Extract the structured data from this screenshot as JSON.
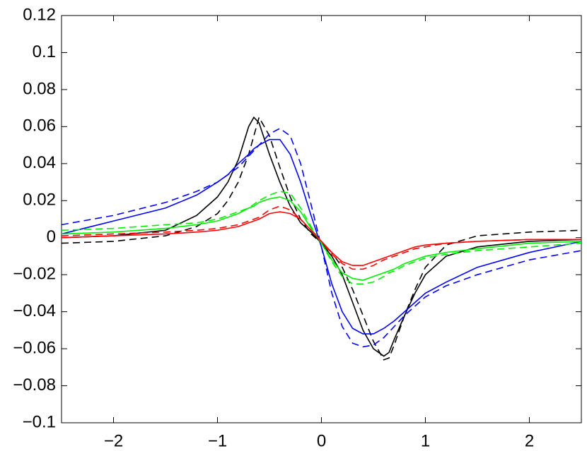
{
  "chart_data": {
    "type": "line",
    "x": [
      -2.5,
      -2,
      -1.5,
      -1.2,
      -1,
      -0.9,
      -0.8,
      -0.7,
      -0.65,
      -0.6,
      -0.5,
      -0.4,
      -0.3,
      -0.2,
      -0.1,
      0,
      0.1,
      0.2,
      0.3,
      0.4,
      0.5,
      0.6,
      0.65,
      0.7,
      0.8,
      0.9,
      1,
      1.2,
      1.5,
      2,
      2.5
    ],
    "series": [
      {
        "color": "#000000",
        "dash": false,
        "values": [
          0,
          0.001,
          0.004,
          0.012,
          0.022,
          0.03,
          0.042,
          0.06,
          0.065,
          0.062,
          0.045,
          0.03,
          0.017,
          0.008,
          0.003,
          -0.003,
          -0.01,
          -0.02,
          -0.035,
          -0.05,
          -0.06,
          -0.064,
          -0.062,
          -0.055,
          -0.042,
          -0.03,
          -0.02,
          -0.01,
          -0.005,
          -0.002,
          -0.001
        ]
      },
      {
        "color": "#000000",
        "dash": true,
        "values": [
          -0.003,
          -0.002,
          0.001,
          0.006,
          0.013,
          0.02,
          0.03,
          0.045,
          0.055,
          0.065,
          0.055,
          0.038,
          0.022,
          0.01,
          0.002,
          -0.003,
          -0.008,
          -0.016,
          -0.028,
          -0.042,
          -0.056,
          -0.066,
          -0.065,
          -0.058,
          -0.042,
          -0.028,
          -0.016,
          -0.004,
          0.001,
          0.003,
          0.004
        ]
      },
      {
        "color": "#0000ff",
        "dash": false,
        "values": [
          0.002,
          0.009,
          0.016,
          0.023,
          0.03,
          0.034,
          0.04,
          0.045,
          0.048,
          0.05,
          0.053,
          0.053,
          0.045,
          0.03,
          0.012,
          -0.005,
          -0.025,
          -0.04,
          -0.049,
          -0.052,
          -0.052,
          -0.049,
          -0.047,
          -0.045,
          -0.04,
          -0.035,
          -0.03,
          -0.024,
          -0.016,
          -0.008,
          -0.002
        ]
      },
      {
        "color": "#0000ff",
        "dash": true,
        "values": [
          0.007,
          0.012,
          0.019,
          0.025,
          0.03,
          0.034,
          0.038,
          0.044,
          0.047,
          0.05,
          0.056,
          0.059,
          0.055,
          0.04,
          0.018,
          -0.005,
          -0.03,
          -0.048,
          -0.057,
          -0.059,
          -0.058,
          -0.054,
          -0.051,
          -0.048,
          -0.042,
          -0.037,
          -0.032,
          -0.026,
          -0.02,
          -0.012,
          -0.007
        ]
      },
      {
        "color": "#00ee00",
        "dash": false,
        "values": [
          0.002,
          0.003,
          0.005,
          0.007,
          0.009,
          0.011,
          0.013,
          0.016,
          0.017,
          0.019,
          0.021,
          0.022,
          0.02,
          0.014,
          0.005,
          -0.003,
          -0.012,
          -0.019,
          -0.022,
          -0.023,
          -0.021,
          -0.019,
          -0.018,
          -0.017,
          -0.014,
          -0.012,
          -0.01,
          -0.008,
          -0.006,
          -0.003,
          -0.002
        ]
      },
      {
        "color": "#00ee00",
        "dash": true,
        "values": [
          0.004,
          0.005,
          0.007,
          0.008,
          0.01,
          0.012,
          0.014,
          0.016,
          0.018,
          0.02,
          0.023,
          0.025,
          0.024,
          0.016,
          0.006,
          -0.003,
          -0.013,
          -0.021,
          -0.025,
          -0.025,
          -0.024,
          -0.021,
          -0.019,
          -0.018,
          -0.015,
          -0.013,
          -0.011,
          -0.009,
          -0.007,
          -0.005,
          -0.003
        ]
      },
      {
        "color": "#ff0000",
        "dash": false,
        "values": [
          0,
          0.001,
          0.002,
          0.003,
          0.004,
          0.005,
          0.006,
          0.008,
          0.009,
          0.01,
          0.013,
          0.014,
          0.013,
          0.01,
          0.004,
          -0.002,
          -0.008,
          -0.013,
          -0.015,
          -0.015,
          -0.013,
          -0.011,
          -0.01,
          -0.009,
          -0.007,
          -0.005,
          -0.004,
          -0.003,
          -0.002,
          -0.001,
          -0.001
        ]
      },
      {
        "color": "#ff0000",
        "dash": true,
        "values": [
          0.001,
          0.002,
          0.003,
          0.004,
          0.005,
          0.006,
          0.007,
          0.009,
          0.01,
          0.011,
          0.015,
          0.017,
          0.015,
          0.01,
          0.004,
          -0.002,
          -0.009,
          -0.014,
          -0.017,
          -0.017,
          -0.015,
          -0.012,
          -0.011,
          -0.01,
          -0.008,
          -0.006,
          -0.005,
          -0.003,
          -0.002,
          -0.001,
          -0.001
        ]
      }
    ],
    "xlim": [
      -2.5,
      2.5
    ],
    "xticks": [
      {
        "value": -2,
        "label": "−2"
      },
      {
        "value": -1,
        "label": "−1"
      },
      0,
      1,
      2
    ],
    "ylim": [
      -0.1,
      0.12
    ],
    "yticks": [
      {
        "value": -0.1,
        "label": "−0.1"
      },
      {
        "value": -0.08,
        "label": "−0.08"
      },
      {
        "value": -0.06,
        "label": "−0.06"
      },
      {
        "value": -0.04,
        "label": "−0.04"
      },
      {
        "value": -0.02,
        "label": "−0.02"
      },
      0,
      0.02,
      0.04,
      0.06,
      0.08,
      0.1,
      0.12
    ],
    "grid": false
  }
}
